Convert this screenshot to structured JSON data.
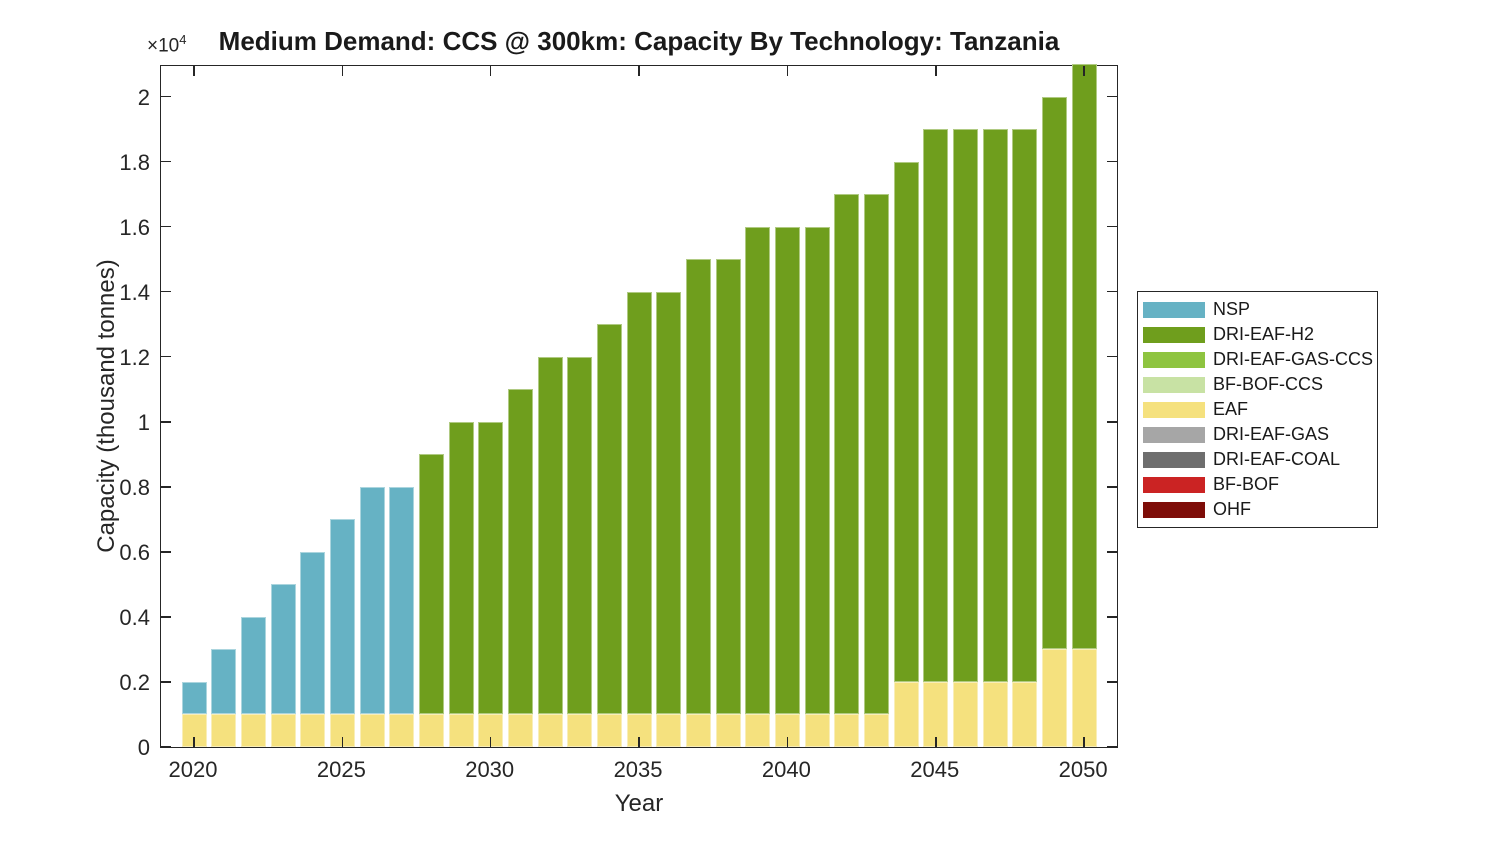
{
  "figure": {
    "title": "Medium Demand: CCS @ 300km: Capacity By Technology: Tanzania",
    "y_multiplier_base": "×10",
    "y_multiplier_exp": "4"
  },
  "style": {
    "background": "#FFFFFF",
    "axis_color": "#262626",
    "text_color": "#262626",
    "title_color": "#1A1A1A",
    "bar_edge_highlight": "rgba(255,255,255,0.45)"
  },
  "chart_data": {
    "type": "bar",
    "stacked": true,
    "title": "Medium Demand: CCS @ 300km: Capacity By Technology: Tanzania",
    "xlabel": "Year",
    "ylabel": "Capacity (thousand tonnes)",
    "y_axis_multiplier_label": "×10^4",
    "y_unit": "thousand tonnes",
    "grid": false,
    "legend_position": "outside-right",
    "ylim": [
      0,
      21000
    ],
    "xlim": [
      2018.9,
      2051.1
    ],
    "categories": [
      2020,
      2021,
      2022,
      2023,
      2024,
      2025,
      2026,
      2027,
      2028,
      2029,
      2030,
      2031,
      2032,
      2033,
      2034,
      2035,
      2036,
      2037,
      2038,
      2039,
      2040,
      2041,
      2042,
      2043,
      2044,
      2045,
      2046,
      2047,
      2048,
      2049,
      2050
    ],
    "x_ticks": [
      2020,
      2025,
      2030,
      2035,
      2040,
      2045,
      2050
    ],
    "y_ticks": {
      "values": [
        0,
        2000,
        4000,
        6000,
        8000,
        10000,
        12000,
        14000,
        16000,
        18000,
        20000
      ],
      "labels": [
        "0",
        "0.2",
        "0.4",
        "0.6",
        "0.8",
        "1",
        "1.2",
        "1.4",
        "1.6",
        "1.8",
        "2"
      ]
    },
    "stack_order": [
      "EAF",
      "NSP",
      "DRI-EAF-H2",
      "DRI-EAF-GAS-CCS",
      "BF-BOF-CCS",
      "DRI-EAF-GAS",
      "DRI-EAF-COAL",
      "BF-BOF",
      "OHF"
    ],
    "series": [
      {
        "name": "NSP",
        "color": "#66B2C4",
        "values": [
          1000,
          2000,
          3000,
          4000,
          5000,
          6000,
          7000,
          7000,
          0,
          0,
          0,
          0,
          0,
          0,
          0,
          0,
          0,
          0,
          0,
          0,
          0,
          0,
          0,
          0,
          0,
          0,
          0,
          0,
          0,
          0,
          0
        ]
      },
      {
        "name": "DRI-EAF-H2",
        "color": "#6F9E1D",
        "values": [
          0,
          0,
          0,
          0,
          0,
          0,
          0,
          0,
          8000,
          9000,
          9000,
          10000,
          11000,
          11000,
          12000,
          13000,
          13000,
          14000,
          14000,
          15000,
          15000,
          15000,
          16000,
          16000,
          16000,
          17000,
          17000,
          17000,
          17000,
          17000,
          18000
        ]
      },
      {
        "name": "DRI-EAF-GAS-CCS",
        "color": "#8EC440",
        "values": [
          0,
          0,
          0,
          0,
          0,
          0,
          0,
          0,
          0,
          0,
          0,
          0,
          0,
          0,
          0,
          0,
          0,
          0,
          0,
          0,
          0,
          0,
          0,
          0,
          0,
          0,
          0,
          0,
          0,
          0,
          0
        ]
      },
      {
        "name": "BF-BOF-CCS",
        "color": "#C8E2A4",
        "values": [
          0,
          0,
          0,
          0,
          0,
          0,
          0,
          0,
          0,
          0,
          0,
          0,
          0,
          0,
          0,
          0,
          0,
          0,
          0,
          0,
          0,
          0,
          0,
          0,
          0,
          0,
          0,
          0,
          0,
          0,
          0
        ]
      },
      {
        "name": "EAF",
        "color": "#F5E17E",
        "values": [
          1000,
          1000,
          1000,
          1000,
          1000,
          1000,
          1000,
          1000,
          1000,
          1000,
          1000,
          1000,
          1000,
          1000,
          1000,
          1000,
          1000,
          1000,
          1000,
          1000,
          1000,
          1000,
          1000,
          1000,
          2000,
          2000,
          2000,
          2000,
          2000,
          3000,
          3000
        ]
      },
      {
        "name": "DRI-EAF-GAS",
        "color": "#A6A6A6",
        "values": [
          0,
          0,
          0,
          0,
          0,
          0,
          0,
          0,
          0,
          0,
          0,
          0,
          0,
          0,
          0,
          0,
          0,
          0,
          0,
          0,
          0,
          0,
          0,
          0,
          0,
          0,
          0,
          0,
          0,
          0,
          0
        ]
      },
      {
        "name": "DRI-EAF-COAL",
        "color": "#6E6E6E",
        "values": [
          0,
          0,
          0,
          0,
          0,
          0,
          0,
          0,
          0,
          0,
          0,
          0,
          0,
          0,
          0,
          0,
          0,
          0,
          0,
          0,
          0,
          0,
          0,
          0,
          0,
          0,
          0,
          0,
          0,
          0,
          0
        ]
      },
      {
        "name": "BF-BOF",
        "color": "#CB2323",
        "values": [
          0,
          0,
          0,
          0,
          0,
          0,
          0,
          0,
          0,
          0,
          0,
          0,
          0,
          0,
          0,
          0,
          0,
          0,
          0,
          0,
          0,
          0,
          0,
          0,
          0,
          0,
          0,
          0,
          0,
          0,
          0
        ]
      },
      {
        "name": "OHF",
        "color": "#7E0D08",
        "values": [
          0,
          0,
          0,
          0,
          0,
          0,
          0,
          0,
          0,
          0,
          0,
          0,
          0,
          0,
          0,
          0,
          0,
          0,
          0,
          0,
          0,
          0,
          0,
          0,
          0,
          0,
          0,
          0,
          0,
          0,
          0
        ]
      }
    ]
  }
}
